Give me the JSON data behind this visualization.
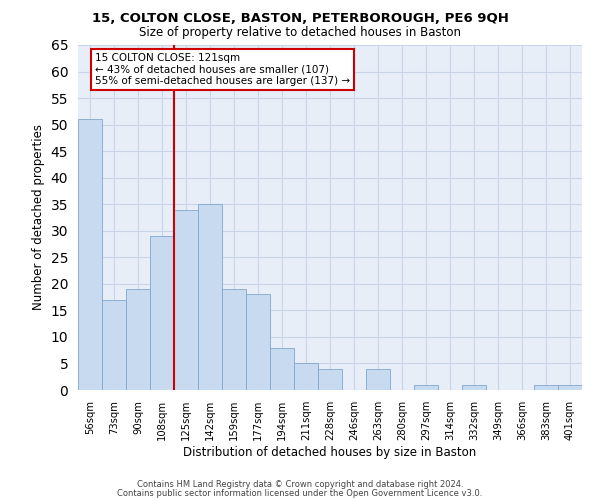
{
  "title1": "15, COLTON CLOSE, BASTON, PETERBOROUGH, PE6 9QH",
  "title2": "Size of property relative to detached houses in Baston",
  "xlabel": "Distribution of detached houses by size in Baston",
  "ylabel": "Number of detached properties",
  "bar_labels": [
    "56sqm",
    "73sqm",
    "90sqm",
    "108sqm",
    "125sqm",
    "142sqm",
    "159sqm",
    "177sqm",
    "194sqm",
    "211sqm",
    "228sqm",
    "246sqm",
    "263sqm",
    "280sqm",
    "297sqm",
    "314sqm",
    "332sqm",
    "349sqm",
    "366sqm",
    "383sqm",
    "401sqm"
  ],
  "bar_values": [
    51,
    17,
    19,
    29,
    34,
    35,
    19,
    18,
    8,
    5,
    4,
    0,
    4,
    0,
    1,
    0,
    1,
    0,
    0,
    1,
    1
  ],
  "bar_color": "#c8daf0",
  "bar_edge_color": "#7fa8cc",
  "vline_index": 4,
  "vline_color": "#cc0000",
  "ylim": [
    0,
    65
  ],
  "yticks": [
    0,
    5,
    10,
    15,
    20,
    25,
    30,
    35,
    40,
    45,
    50,
    55,
    60,
    65
  ],
  "annotation_title": "15 COLTON CLOSE: 121sqm",
  "annotation_line1": "← 43% of detached houses are smaller (107)",
  "annotation_line2": "55% of semi-detached houses are larger (137) →",
  "annotation_box_color": "#ffffff",
  "annotation_box_edge": "#cc0000",
  "footer1": "Contains HM Land Registry data © Crown copyright and database right 2024.",
  "footer2": "Contains public sector information licensed under the Open Government Licence v3.0.",
  "background_color": "#ffffff",
  "grid_color": "#c8d4e8"
}
